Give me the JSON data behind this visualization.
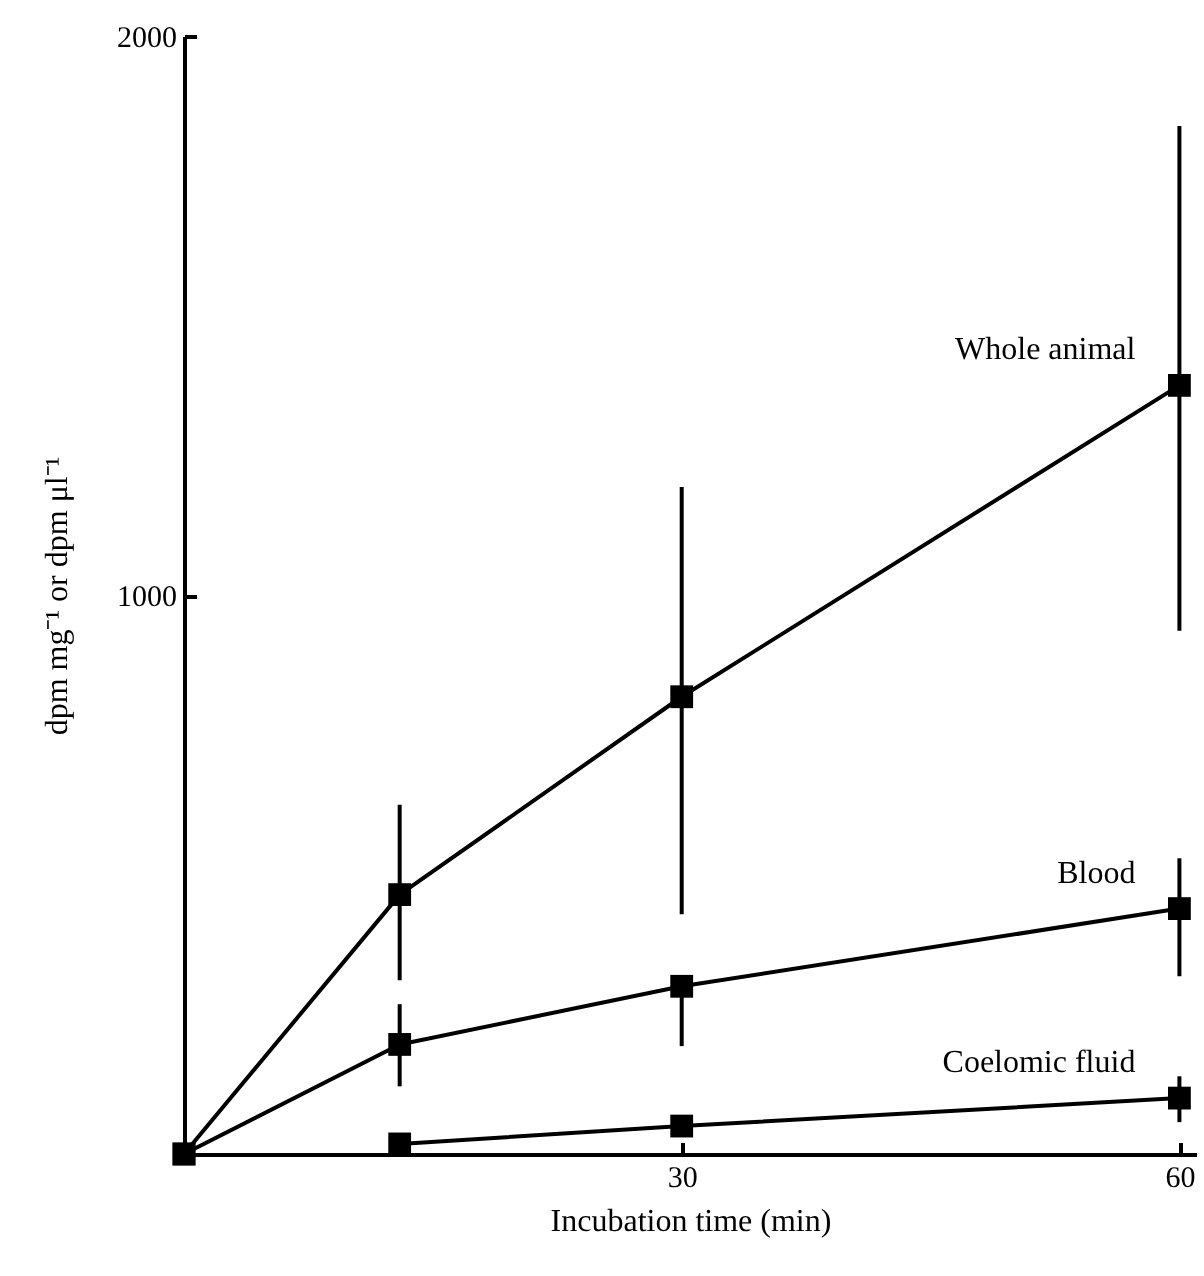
{
  "chart_data": {
    "type": "line",
    "xlabel": "Incubation time (min)",
    "ylabel": "dpm  mg⁻¹ or dpm μl⁻¹",
    "xlim": [
      0,
      61
    ],
    "xticks": [
      30,
      60
    ],
    "ylim": [
      0,
      2000
    ],
    "yticks": [
      1000,
      2000
    ],
    "marker": "square",
    "line_style": "solid",
    "series": [
      {
        "name": "Whole animal",
        "color": "#000000",
        "x": [
          0,
          13,
          30,
          60
        ],
        "values": [
          0,
          464,
          818,
          1375
        ],
        "errors": [
          null,
          [
            311,
            625
          ],
          [
            429,
            1193
          ],
          [
            936,
            1839
          ]
        ]
      },
      {
        "name": "Blood",
        "color": "#000000",
        "x": [
          0,
          13,
          30,
          60
        ],
        "values": [
          0,
          196,
          300,
          439
        ],
        "errors": [
          null,
          [
            121,
            268
          ],
          [
            193,
            300
          ],
          [
            318,
            529
          ]
        ]
      },
      {
        "name": "Coelomic fluid",
        "color": "#000000",
        "x": [
          13,
          30,
          60
        ],
        "values": [
          18,
          50,
          100
        ],
        "errors": [
          null,
          null,
          [
            57,
            139
          ]
        ]
      }
    ]
  }
}
